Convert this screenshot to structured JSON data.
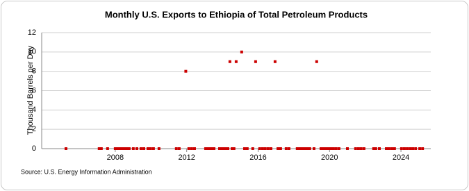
{
  "chart_data": {
    "type": "scatter",
    "title": "Monthly U.S. Exports to Ethiopia of Total Petroleum Products",
    "y_label": "Thousand Barrels per Day",
    "source": "Source: U.S. Energy Information Administration",
    "color": "#cc0000",
    "xlim": [
      2003.88,
      2025.67
    ],
    "xticks": [
      2008,
      2012,
      2016,
      2020,
      2024
    ],
    "ylim": [
      0,
      12
    ],
    "yticks": [
      0,
      2,
      4,
      6,
      8,
      10,
      12
    ],
    "grid": true,
    "x": [
      2005.24,
      2007.1,
      2007.22,
      2007.57,
      2008.0,
      2008.12,
      2008.23,
      2008.35,
      2008.47,
      2008.58,
      2008.7,
      2008.78,
      2009.01,
      2009.21,
      2009.44,
      2009.6,
      2009.83,
      2009.98,
      2010.14,
      2010.45,
      2011.42,
      2011.58,
      2011.95,
      2012.12,
      2012.28,
      2012.44,
      2013.06,
      2013.18,
      2013.29,
      2013.41,
      2013.53,
      2013.84,
      2013.95,
      2014.07,
      2014.19,
      2014.31,
      2014.42,
      2014.54,
      2014.65,
      2014.77,
      2015.08,
      2015.24,
      2015.39,
      2015.7,
      2015.86,
      2016.09,
      2016.25,
      2016.4,
      2016.56,
      2016.72,
      2016.95,
      2017.11,
      2017.26,
      2017.57,
      2017.73,
      2018.19,
      2018.31,
      2018.43,
      2018.54,
      2018.66,
      2018.78,
      2018.89,
      2019.13,
      2019.28,
      2019.52,
      2019.63,
      2019.75,
      2019.87,
      2019.98,
      2020.1,
      2020.22,
      2020.37,
      2020.53,
      2021.0,
      2021.46,
      2021.62,
      2021.77,
      2021.93,
      2022.47,
      2022.59,
      2022.79,
      2023.18,
      2023.33,
      2023.49,
      2023.64,
      2024.03,
      2024.19,
      2024.35,
      2024.51,
      2024.66,
      2024.82,
      2025.05,
      2025.21
    ],
    "values": [
      0,
      0,
      0,
      0,
      0,
      0,
      0,
      0,
      0,
      0,
      0,
      0,
      0,
      0,
      0,
      0,
      0,
      0,
      0,
      0,
      0,
      0,
      8,
      0,
      0,
      0,
      0,
      0,
      0,
      0,
      0,
      0,
      0,
      0,
      0,
      0,
      9,
      0,
      0,
      9,
      10,
      0,
      0,
      0,
      9,
      0,
      0,
      0,
      0,
      0,
      9,
      0,
      0,
      0,
      0,
      0,
      0,
      0,
      0,
      0,
      0,
      0,
      0,
      9,
      0,
      0,
      0,
      0,
      0,
      0,
      0,
      0,
      0,
      0,
      0,
      0,
      0,
      0,
      0,
      0,
      0,
      0,
      0,
      0,
      0,
      0,
      0,
      0,
      0,
      0,
      0,
      0,
      0
    ]
  }
}
